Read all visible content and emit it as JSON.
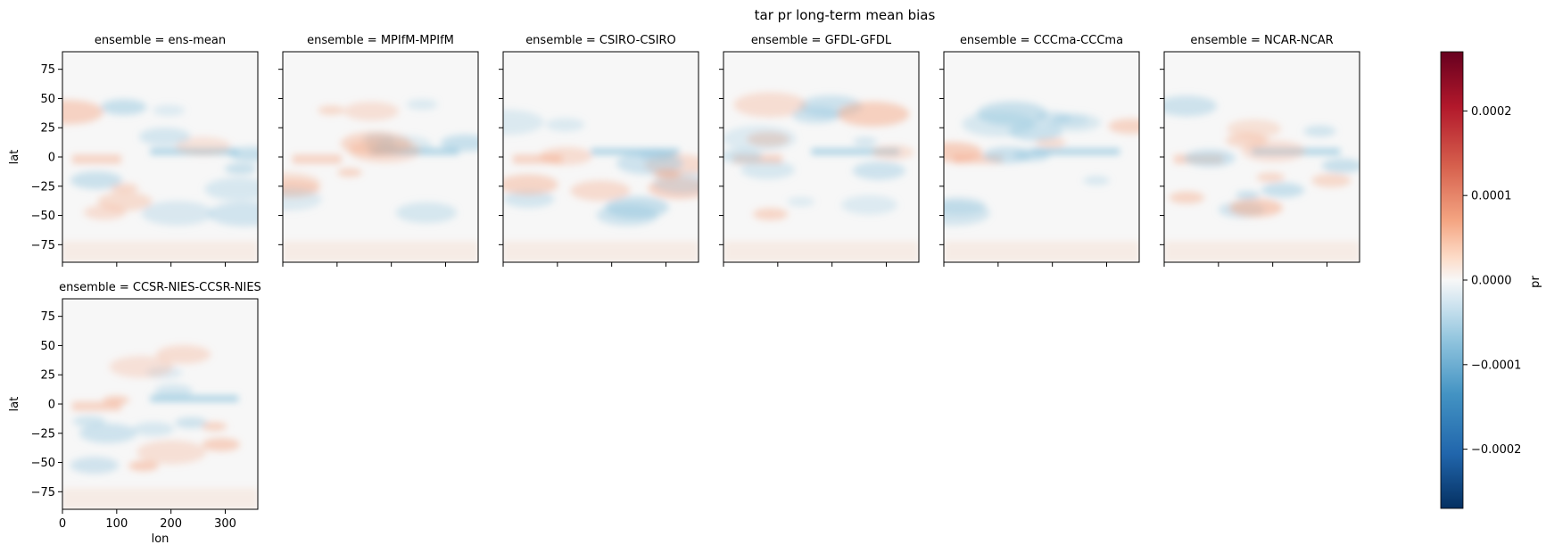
{
  "chart_data": {
    "type": "heatmap",
    "title": "tar pr long-term mean bias",
    "xlabel": "lon",
    "ylabel": "lat",
    "xlim": [
      0,
      360
    ],
    "ylim": [
      -90,
      90
    ],
    "x_ticks": [
      0,
      100,
      200,
      300
    ],
    "y_ticks": [
      75,
      50,
      25,
      0,
      -25,
      -50,
      -75
    ],
    "colorbar": {
      "label": "pr",
      "colormap": "RdBu_r",
      "vmin": -0.00027,
      "vmax": 0.00027,
      "ticks": [
        0.0002,
        0.0001,
        0.0,
        -0.0001,
        -0.0002
      ],
      "tick_labels": [
        "0.0002",
        "0.0001",
        "0.0000",
        "−0.0001",
        "−0.0002"
      ]
    },
    "panels": [
      {
        "title": "ensemble = ens-mean"
      },
      {
        "title": "ensemble = MPIfM-MPIfM"
      },
      {
        "title": "ensemble = CSIRO-CSIRO"
      },
      {
        "title": "ensemble = GFDL-GFDL"
      },
      {
        "title": "ensemble = CCCma-CCCma"
      },
      {
        "title": "ensemble = NCAR-NCAR"
      },
      {
        "title": "ensemble = CCSR-NIES-CCSR-NIES"
      }
    ]
  },
  "colors": {
    "neg_strong": "#053061",
    "neg": "#2166ac",
    "neg_light": "#92c5de",
    "neutral": "#f7f7f7",
    "pos_light": "#f4a582",
    "pos": "#d6604d",
    "pos_strong": "#67001f"
  }
}
